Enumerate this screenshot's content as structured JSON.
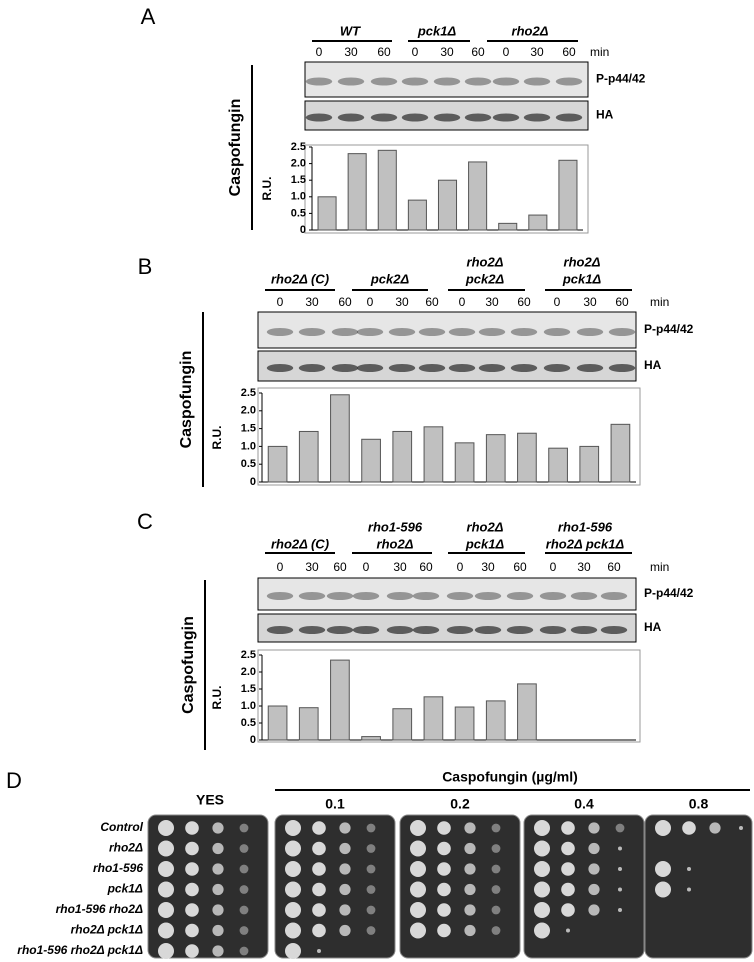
{
  "panels": [
    {
      "label": "A",
      "groups": [
        [
          "WT"
        ],
        [
          "pck1Δ"
        ],
        [
          "rho2Δ"
        ]
      ],
      "times": [
        "0",
        "30",
        "60"
      ],
      "unit": "min",
      "blots": [
        "P-p44/42",
        "HA"
      ],
      "treatment": "Caspofungin",
      "chart": {
        "type": "bar",
        "ylabel": "R.U.",
        "values": [
          1.0,
          2.3,
          2.4,
          0.9,
          1.5,
          2.05,
          0.2,
          0.45,
          2.1
        ],
        "ylim": [
          0,
          2.5
        ],
        "yticks": [
          0,
          0.5,
          {
            "value": 1,
            "label": "1.0"
          },
          1.5,
          {
            "value": 2,
            "label": "2.0"
          },
          2.5
        ]
      }
    },
    {
      "label": "B",
      "groups": [
        [
          "rho2Δ (C)"
        ],
        [
          "pck2Δ"
        ],
        [
          "rho2Δ",
          "pck2Δ"
        ],
        [
          "rho2Δ",
          "pck1Δ"
        ]
      ],
      "times": [
        "0",
        "30",
        "60"
      ],
      "unit": "min",
      "blots": [
        "P-p44/42",
        "HA"
      ],
      "treatment": "Caspofungin",
      "chart": {
        "type": "bar",
        "ylabel": "R.U.",
        "values": [
          1.0,
          1.42,
          2.45,
          1.2,
          1.42,
          1.55,
          1.1,
          1.33,
          1.37,
          0.95,
          1.0,
          1.62
        ],
        "ylim": [
          0,
          2.5
        ],
        "yticks": [
          0,
          0.5,
          {
            "value": 1,
            "label": "1.0"
          },
          1.5,
          {
            "value": 2,
            "label": "2.0"
          },
          2.5
        ]
      }
    },
    {
      "label": "C",
      "groups": [
        [
          "rho2Δ (C)"
        ],
        [
          "rho1-596",
          "rho2Δ"
        ],
        [
          "rho2Δ",
          "pck1Δ"
        ],
        [
          "rho1-596",
          "rho2Δ pck1Δ"
        ]
      ],
      "times": [
        "0",
        "30",
        "60"
      ],
      "unit": "min",
      "blots": [
        "P-p44/42",
        "HA"
      ],
      "treatment": "Caspofungin",
      "chart": {
        "type": "bar",
        "ylabel": "R.U.",
        "values": [
          1.0,
          0.95,
          2.35,
          0.1,
          0.92,
          1.27,
          0.97,
          1.15,
          1.65,
          null,
          null,
          null
        ],
        "ylim": [
          0,
          2.5
        ],
        "yticks": [
          0,
          0.5,
          {
            "value": 1,
            "label": "1.0"
          },
          1.5,
          {
            "value": 2,
            "label": "2.0"
          },
          2.5
        ]
      }
    }
  ],
  "spot_assay": {
    "label": "D",
    "control_medium": "YES",
    "treatment": "Caspofungin (µg/ml)",
    "concentrations": [
      "0.1",
      "0.2",
      "0.4",
      "0.8"
    ],
    "strains": [
      "Control",
      "rho2Δ",
      "rho1-596",
      "pck1Δ",
      "rho1-596 rho2Δ",
      "rho2Δ pck1Δ",
      "rho1-596 rho2Δ pck1Δ"
    ]
  }
}
